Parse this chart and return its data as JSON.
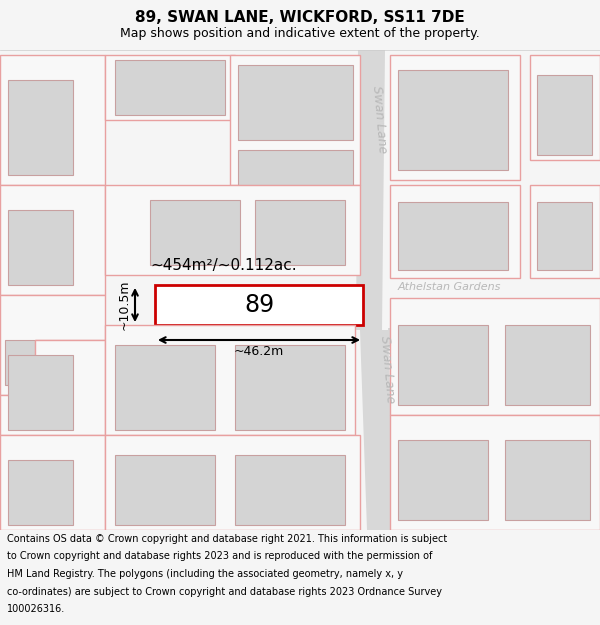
{
  "title": "89, SWAN LANE, WICKFORD, SS11 7DE",
  "subtitle": "Map shows position and indicative extent of the property.",
  "footer_lines": [
    "Contains OS data © Crown copyright and database right 2021. This information is subject",
    "to Crown copyright and database rights 2023 and is reproduced with the permission of",
    "HM Land Registry. The polygons (including the associated geometry, namely x, y",
    "co-ordinates) are subject to Crown copyright and database rights 2023 Ordnance Survey",
    "100026316."
  ],
  "bg_color": "#f5f5f5",
  "map_bg": "#ffffff",
  "road_color": "#d8d8d8",
  "plot_color": "#e8a0a0",
  "highlight_color": "#cc0000",
  "highlight_fill": "#ffffff",
  "building_fill": "#d4d4d4",
  "building_edge": "#c8a0a0",
  "road_label_color": "#b8b8b8",
  "label_89": "89",
  "area_label": "~454m²/~0.112ac.",
  "width_label": "~46.2m",
  "height_label": "~10.5m",
  "street_name_upper": "Swan Lane",
  "street_name_lower": "Swan Lane",
  "street_name_cross": "Athelstan Gardens",
  "title_fontsize": 11,
  "subtitle_fontsize": 9,
  "footer_fontsize": 7
}
